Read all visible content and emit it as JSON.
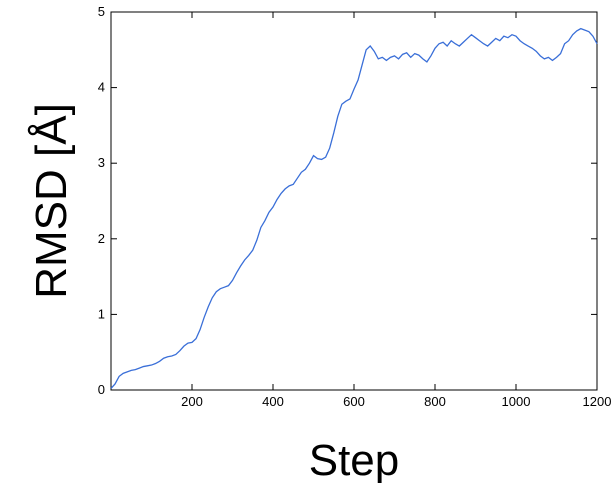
{
  "chart_data": {
    "type": "line",
    "xlabel": "Step",
    "ylabel": "RMSD [Å]",
    "xlim": [
      0,
      1200
    ],
    "ylim": [
      0,
      5
    ],
    "x_ticks": [
      200,
      400,
      600,
      800,
      1000,
      1200
    ],
    "y_ticks": [
      0,
      1,
      2,
      3,
      4,
      5
    ],
    "grid": false,
    "line_color": "#3a6fd8",
    "series": [
      {
        "x": [
          0,
          10,
          20,
          30,
          40,
          50,
          60,
          70,
          80,
          90,
          100,
          110,
          120,
          130,
          140,
          150,
          160,
          170,
          180,
          190,
          200,
          210,
          220,
          230,
          240,
          250,
          260,
          270,
          280,
          290,
          300,
          310,
          320,
          330,
          340,
          350,
          360,
          370,
          380,
          390,
          400,
          410,
          420,
          430,
          440,
          450,
          460,
          470,
          480,
          490,
          500,
          510,
          520,
          530,
          540,
          550,
          560,
          570,
          580,
          590,
          600,
          610,
          620,
          630,
          640,
          650,
          660,
          670,
          680,
          690,
          700,
          710,
          720,
          730,
          740,
          750,
          760,
          770,
          780,
          790,
          800,
          810,
          820,
          830,
          840,
          850,
          860,
          870,
          880,
          890,
          900,
          910,
          920,
          930,
          940,
          950,
          960,
          970,
          980,
          990,
          1000,
          1010,
          1020,
          1030,
          1040,
          1050,
          1060,
          1070,
          1080,
          1090,
          1100,
          1110,
          1120,
          1130,
          1140,
          1150,
          1160,
          1170,
          1180,
          1190,
          1200
        ],
        "values": [
          0.02,
          0.08,
          0.18,
          0.22,
          0.24,
          0.26,
          0.27,
          0.29,
          0.31,
          0.32,
          0.33,
          0.35,
          0.38,
          0.42,
          0.44,
          0.45,
          0.47,
          0.52,
          0.58,
          0.62,
          0.63,
          0.68,
          0.8,
          0.96,
          1.1,
          1.22,
          1.3,
          1.34,
          1.36,
          1.38,
          1.45,
          1.55,
          1.64,
          1.72,
          1.78,
          1.85,
          1.98,
          2.15,
          2.24,
          2.35,
          2.42,
          2.52,
          2.6,
          2.66,
          2.7,
          2.72,
          2.8,
          2.88,
          2.92,
          3.0,
          3.1,
          3.06,
          3.05,
          3.08,
          3.2,
          3.4,
          3.62,
          3.78,
          3.82,
          3.85,
          3.98,
          4.1,
          4.3,
          4.5,
          4.55,
          4.48,
          4.38,
          4.4,
          4.36,
          4.4,
          4.42,
          4.38,
          4.44,
          4.46,
          4.4,
          4.45,
          4.43,
          4.38,
          4.34,
          4.42,
          4.52,
          4.58,
          4.6,
          4.55,
          4.62,
          4.58,
          4.55,
          4.6,
          4.65,
          4.7,
          4.66,
          4.62,
          4.58,
          4.55,
          4.6,
          4.65,
          4.62,
          4.68,
          4.66,
          4.7,
          4.68,
          4.62,
          4.58,
          4.55,
          4.52,
          4.48,
          4.42,
          4.38,
          4.4,
          4.36,
          4.4,
          4.45,
          4.58,
          4.62,
          4.7,
          4.75,
          4.78,
          4.76,
          4.74,
          4.68,
          4.58
        ]
      }
    ]
  }
}
